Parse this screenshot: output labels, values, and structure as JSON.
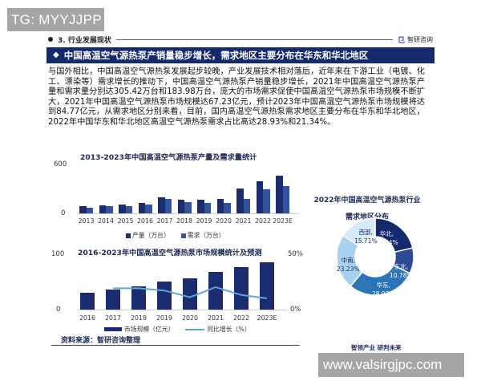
{
  "overlay": {
    "top_badge": "TG: MYYJJPP",
    "bottom_badge": "www.valsirgjpc.com"
  },
  "header": {
    "section_label": "3. 行业发展现状",
    "brand_name": "智研咨询",
    "brand_mark": "㔾"
  },
  "title_bar": {
    "icon": "diamond-icon",
    "text": "中国高温空气源热泵产销量稳步增长，需求地区主要分布在华东和华北地区"
  },
  "intro_text": "与国外相比，中国高温空气源热泵发展起步较晚，产业发展技术相对落后，近年来在下游工业（电镀、化工、漂染等）需求增长的推动下，中国高温空气源热泵产销量稳步增长，2021年中国高温空气源热泵产量和需求量分别达305.42万台和183.98万台，庞大的市场需求促使中国高温空气源热泵市场规模不断扩大，2021年中国高温空气源热泵市场规模达67.23亿元，预计2023年中国高温空气源热泵市场规模将达到84.77亿元，从需求地区分别来看，目前，国内高温空气源热泵需求地区主要分布在华东和华北地区，2022年中国华东和华北地区高温空气源热泵需求占比高达28.93%和21.34%。",
  "colors": {
    "navy": "#15296b",
    "bar_dark": "#1b2d6e",
    "bar_mid": "#34539f",
    "line": "#5aa7d6",
    "pie": [
      "#13296b",
      "#2d4a94",
      "#2b74b5",
      "#a9d1ef",
      "#d6e9f8"
    ]
  },
  "chart_data": [
    {
      "type": "bar",
      "title": "2013-2023年中国高温空气源热泵产量及需求量统计",
      "categories": [
        "2013",
        "2014",
        "2015",
        "2016",
        "2017",
        "2018",
        "2019",
        "2020",
        "2021",
        "2022",
        "2023E"
      ],
      "series": [
        {
          "name": "产量（万台）",
          "values": [
            95,
            105,
            115,
            135,
            200,
            170,
            170,
            185,
            305.42,
            400,
            470
          ]
        },
        {
          "name": "需求（万台）",
          "values": [
            75,
            90,
            95,
            115,
            180,
            140,
            135,
            130,
            183.98,
            300,
            340
          ]
        }
      ],
      "xlabel": "",
      "ylabel": "",
      "yticks": [
        "0",
        "600"
      ],
      "ylim": [
        0,
        600
      ],
      "grid": false,
      "legend_position": "bottom"
    },
    {
      "type": "bar",
      "title": "2016-2023年中国高温空气源热泵市场规模统计及预测",
      "categories": [
        "2016",
        "2017",
        "2018",
        "2019",
        "2020",
        "2021",
        "2022",
        "2023E"
      ],
      "series": [
        {
          "name": "市场规模（亿元）",
          "type": "bar",
          "axis": "left",
          "values": [
            30,
            36,
            42,
            50,
            56,
            67.23,
            76,
            84.77
          ]
        },
        {
          "name": "同比增长（%）",
          "type": "line",
          "axis": "right",
          "values": [
            null,
            19,
            19,
            17,
            11,
            20,
            13,
            10
          ]
        }
      ],
      "yticks_left": [
        "0",
        "100"
      ],
      "yticks_right": [
        "0%",
        "50%"
      ],
      "ylim_left": [
        0,
        100
      ],
      "ylim_right": [
        0,
        50
      ],
      "grid": false,
      "legend_position": "bottom"
    },
    {
      "type": "pie",
      "title": "2022年中国高温空气源热泵行业需求地区分布",
      "donut": true,
      "slices": [
        {
          "label": "华北",
          "value": 21.34
        },
        {
          "label": "东北",
          "value": 10.78
        },
        {
          "label": "华东",
          "value": 28.93
        },
        {
          "label": "中南",
          "value": 23.23
        },
        {
          "label": "西部",
          "value": 15.71
        }
      ]
    }
  ],
  "chart1": {
    "title": "2013-2023年中国高温空气源热泵产量及需求量统计",
    "y_top": "600",
    "y_bottom": "0",
    "legend": [
      "产量（万台）",
      "需求（万台）"
    ],
    "x": [
      "2013",
      "2014",
      "2015",
      "2016",
      "2017",
      "2018",
      "2019",
      "2020",
      "2021",
      "2022",
      "2023E"
    ]
  },
  "chart2": {
    "title": "2016-2023年中国高温空气源热泵市场规模统计及预测",
    "y_left_top": "100",
    "y_left_bottom": "0",
    "y_right_top": "50%",
    "y_right_bottom": "0%",
    "legend": [
      "市场规模（亿元）",
      "同比增长（%）"
    ],
    "x": [
      "2016",
      "2017",
      "2018",
      "2019",
      "2020",
      "2021",
      "2022",
      "2023E"
    ]
  },
  "pie": {
    "title_line1": "2022年中国高温空气源热泵行业",
    "title_line2": "需求地区分布",
    "labels": [
      {
        "name": "华北,",
        "pct": "21.34%"
      },
      {
        "name": "东北,",
        "pct": "10.78%"
      },
      {
        "name": "华东,",
        "pct": "28.93%"
      },
      {
        "name": "中南,",
        "pct": "23.23%"
      },
      {
        "name": "西部,",
        "pct": "15.71%"
      }
    ]
  },
  "footer": {
    "source": "资料来源：智研咨询整理",
    "slogan": "智领产业 研判未来"
  }
}
